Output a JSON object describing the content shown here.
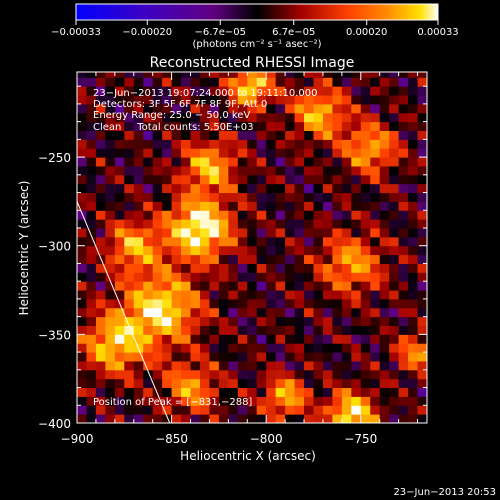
{
  "chart_data": {
    "type": "heatmap",
    "title": "Reconstructed RHESSI Image",
    "xlabel": "Heliocentric X (arcsec)",
    "ylabel": "Heliocentric Y (arcsec)",
    "xlim": [
      -900,
      -715
    ],
    "ylim": [
      -400,
      -202
    ],
    "x_ticks": [
      -900,
      -850,
      -800,
      -750
    ],
    "x_tick_labels": [
      "−900",
      "−850",
      "−800",
      "−750"
    ],
    "y_ticks": [
      -250,
      -300,
      -350,
      -400
    ],
    "y_tick_labels": [
      "−250",
      "−300",
      "−350",
      "−400"
    ],
    "colorbar": {
      "ticks": [
        -0.00033,
        -0.0002,
        -6.7e-05,
        6.7e-05,
        0.0002,
        0.00033
      ],
      "tick_labels": [
        "−0.00033",
        "−0.00020",
        "−6.7e−05",
        "6.7e−05",
        "0.00020",
        "0.00033"
      ],
      "units_label": "(photons cm⁻² s⁻¹ asec⁻²)",
      "colors": [
        "#0000ff",
        "#4000c0",
        "#600080",
        "#000000",
        "#a00000",
        "#ff4000",
        "#ff8c00",
        "#ffe000",
        "#ffffff"
      ]
    },
    "annotations": [
      "23−Jun−2013 19:07:24.000 to 19:11:10.000",
      "Detectors: 3F 5F 6F 7F 8F 9F, Att 0",
      "Energy Range: 25.0 − 50.0 keV",
      "Clean     Total counts: 5.50E+03"
    ],
    "peak_label": "Position of Peak = [−831,−288]",
    "peak": [
      -831,
      -288
    ],
    "limb_line": {
      "x": [
        -900,
        -851
      ],
      "y": [
        -275,
        -400
      ]
    },
    "sources": [
      {
        "x": -835,
        "y": -290,
        "sigma": 12,
        "amp": 1.0
      },
      {
        "x": -855,
        "y": -335,
        "sigma": 14,
        "amp": 0.85
      },
      {
        "x": -880,
        "y": -355,
        "sigma": 12,
        "amp": 0.75
      },
      {
        "x": -830,
        "y": -255,
        "sigma": 10,
        "amp": 0.7
      },
      {
        "x": -808,
        "y": -210,
        "sigma": 8,
        "amp": 0.85
      },
      {
        "x": -772,
        "y": -225,
        "sigma": 10,
        "amp": 0.7
      },
      {
        "x": -745,
        "y": -245,
        "sigma": 10,
        "amp": 0.65
      },
      {
        "x": -755,
        "y": -310,
        "sigma": 12,
        "amp": 0.6
      },
      {
        "x": -755,
        "y": -395,
        "sigma": 9,
        "amp": 0.9
      },
      {
        "x": -790,
        "y": -385,
        "sigma": 8,
        "amp": 0.7
      },
      {
        "x": -840,
        "y": -380,
        "sigma": 10,
        "amp": 0.6
      },
      {
        "x": -870,
        "y": -300,
        "sigma": 10,
        "amp": 0.65
      },
      {
        "x": -720,
        "y": -360,
        "sigma": 8,
        "amp": 0.55
      }
    ]
  },
  "footer_timestamp": "23−Jun−2013 20:53"
}
